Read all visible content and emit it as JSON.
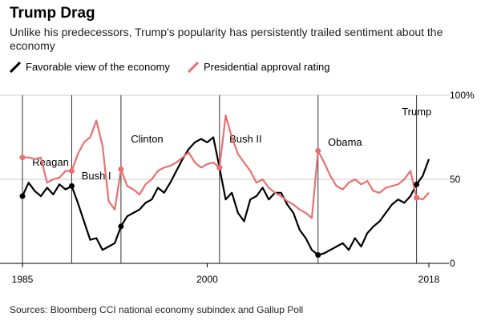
{
  "title": "Trump Drag",
  "subtitle": "Unlike his predecessors, Trump's popularity has persistently trailed sentiment about the economy",
  "source": "Sources: Bloomberg CCI national economy subindex and Gallup Poll",
  "colors": {
    "economy": "#000000",
    "approval": "#e8706f",
    "grid": "#cccccc"
  },
  "chart_data": {
    "type": "line",
    "xlim": [
      1985,
      2018
    ],
    "ylim": [
      0,
      100
    ],
    "x_ticks": [
      {
        "value": 1985,
        "label": "1985"
      },
      {
        "value": 2000,
        "label": "2000"
      },
      {
        "value": 2018,
        "label": "2018"
      }
    ],
    "y_ticks": [
      {
        "value": 0,
        "label": "0"
      },
      {
        "value": 50,
        "label": "50"
      },
      {
        "value": 100,
        "label": "100%"
      }
    ],
    "grid": "horizontal",
    "legend_position": "top-left",
    "series": [
      {
        "name": "Favorable view of the economy",
        "key": "economy",
        "x": [
          1985,
          1985.5,
          1986,
          1986.5,
          1987,
          1987.5,
          1988,
          1988.5,
          1989,
          1989.5,
          1990,
          1990.5,
          1991,
          1991.5,
          1992,
          1992.5,
          1993,
          1993.5,
          1994,
          1994.5,
          1995,
          1995.5,
          1996,
          1996.5,
          1997,
          1997.5,
          1998,
          1998.5,
          1999,
          1999.5,
          2000,
          2000.5,
          2001,
          2001.5,
          2002,
          2002.5,
          2003,
          2003.5,
          2004,
          2004.5,
          2005,
          2005.5,
          2006,
          2006.5,
          2007,
          2007.5,
          2008,
          2008.5,
          2009,
          2009.5,
          2010,
          2010.5,
          2011,
          2011.5,
          2012,
          2012.5,
          2013,
          2013.5,
          2014,
          2014.5,
          2015,
          2015.5,
          2016,
          2016.5,
          2017,
          2017.5,
          2018
        ],
        "values": [
          40,
          48,
          43,
          40,
          45,
          41,
          47,
          44,
          46,
          36,
          25,
          14,
          15,
          8,
          10,
          12,
          22,
          28,
          30,
          32,
          36,
          38,
          45,
          42,
          48,
          55,
          62,
          68,
          72,
          74,
          72,
          75,
          57,
          38,
          42,
          30,
          25,
          38,
          40,
          45,
          38,
          42,
          42,
          35,
          30,
          20,
          15,
          8,
          5,
          6,
          8,
          10,
          12,
          8,
          15,
          10,
          18,
          22,
          25,
          30,
          35,
          38,
          36,
          40,
          47,
          52,
          62
        ]
      },
      {
        "name": "Presidential approval rating",
        "key": "approval",
        "x": [
          1985,
          1985.5,
          1986,
          1986.5,
          1987,
          1987.5,
          1988,
          1988.5,
          1989,
          1989.5,
          1990,
          1990.5,
          1991,
          1991.5,
          1992,
          1992.5,
          1993,
          1993.5,
          1994,
          1994.5,
          1995,
          1995.5,
          1996,
          1996.5,
          1997,
          1997.5,
          1998,
          1998.5,
          1999,
          1999.5,
          2000,
          2000.5,
          2001,
          2001.5,
          2002,
          2002.5,
          2003,
          2003.5,
          2004,
          2004.5,
          2005,
          2005.5,
          2006,
          2006.5,
          2007,
          2007.5,
          2008,
          2008.5,
          2009,
          2009.5,
          2010,
          2010.5,
          2011,
          2011.5,
          2012,
          2012.5,
          2013,
          2013.5,
          2014,
          2014.5,
          2015,
          2015.5,
          2016,
          2016.5,
          2017,
          2017.5,
          2018
        ],
        "values": [
          63,
          63,
          62,
          63,
          48,
          50,
          51,
          55,
          55,
          65,
          72,
          75,
          85,
          70,
          37,
          32,
          56,
          46,
          44,
          41,
          47,
          50,
          55,
          57,
          58,
          60,
          63,
          66,
          60,
          57,
          59,
          60,
          57,
          88,
          75,
          65,
          60,
          55,
          48,
          50,
          45,
          42,
          40,
          37,
          35,
          32,
          30,
          27,
          67,
          60,
          52,
          46,
          44,
          48,
          50,
          47,
          49,
          43,
          42,
          45,
          46,
          47,
          50,
          55,
          39,
          38,
          42
        ]
      }
    ],
    "annotations": [
      {
        "label": "Reagan",
        "x": 1985,
        "text_x": 1985.8,
        "text_y": 58
      },
      {
        "label": "Bush I",
        "x": 1989,
        "text_x": 1989.8,
        "text_y": 50
      },
      {
        "label": "Clinton",
        "x": 1993,
        "text_x": 1993.8,
        "text_y": 72
      },
      {
        "label": "Bush II",
        "x": 2001,
        "text_x": 2001.8,
        "text_y": 72
      },
      {
        "label": "Obama",
        "x": 2009,
        "text_x": 2009.8,
        "text_y": 70
      },
      {
        "label": "Trump",
        "x": 2017,
        "text_x": 2015.8,
        "text_y": 88
      }
    ]
  }
}
